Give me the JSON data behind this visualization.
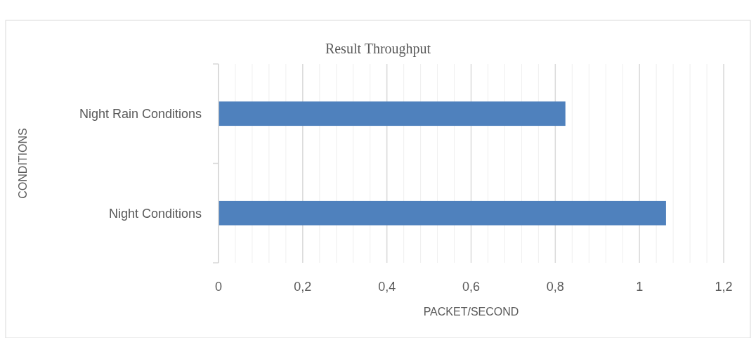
{
  "chart_data": {
    "type": "bar",
    "orientation": "horizontal",
    "title": "Result Throughput",
    "xlabel": "PACKET/SECOND",
    "ylabel": "CONDITIONS",
    "categories": [
      "Night Rain Conditions",
      "Night Conditions"
    ],
    "values": [
      0.824,
      1.063
    ],
    "color": "#4f81bd",
    "xlim": [
      0,
      1.2
    ],
    "xticks": [
      0,
      {
        "value": 0.04,
        "label": null
      },
      {
        "value": 0.08,
        "label": null
      },
      {
        "value": 0.12,
        "label": null
      },
      {
        "value": 0.16,
        "label": null
      },
      {
        "value": 0.2,
        "label": "0,2"
      },
      {
        "value": 0.24,
        "label": null
      },
      {
        "value": 0.28,
        "label": null
      },
      {
        "value": 0.32,
        "label": null
      },
      {
        "value": 0.36,
        "label": null
      },
      {
        "value": 0.4,
        "label": "0,4"
      },
      {
        "value": 0.44,
        "label": null
      },
      {
        "value": 0.48,
        "label": null
      },
      {
        "value": 0.52,
        "label": null
      },
      {
        "value": 0.56,
        "label": null
      },
      {
        "value": 0.6,
        "label": "0,6"
      },
      {
        "value": 0.64,
        "label": null
      },
      {
        "value": 0.68,
        "label": null
      },
      {
        "value": 0.72,
        "label": null
      },
      {
        "value": 0.76,
        "label": null
      },
      {
        "value": 0.8,
        "label": "0,8"
      },
      {
        "value": 0.84,
        "label": null
      },
      {
        "value": 0.88,
        "label": null
      },
      {
        "value": 0.92,
        "label": null
      },
      {
        "value": 0.96,
        "label": null
      },
      1,
      {
        "value": 1.04,
        "label": null
      },
      {
        "value": 1.08,
        "label": null
      },
      {
        "value": 1.12,
        "label": null
      },
      {
        "value": 1.16,
        "label": null
      },
      {
        "value": 1.2,
        "label": "1,2"
      }
    ],
    "grid": "x"
  }
}
